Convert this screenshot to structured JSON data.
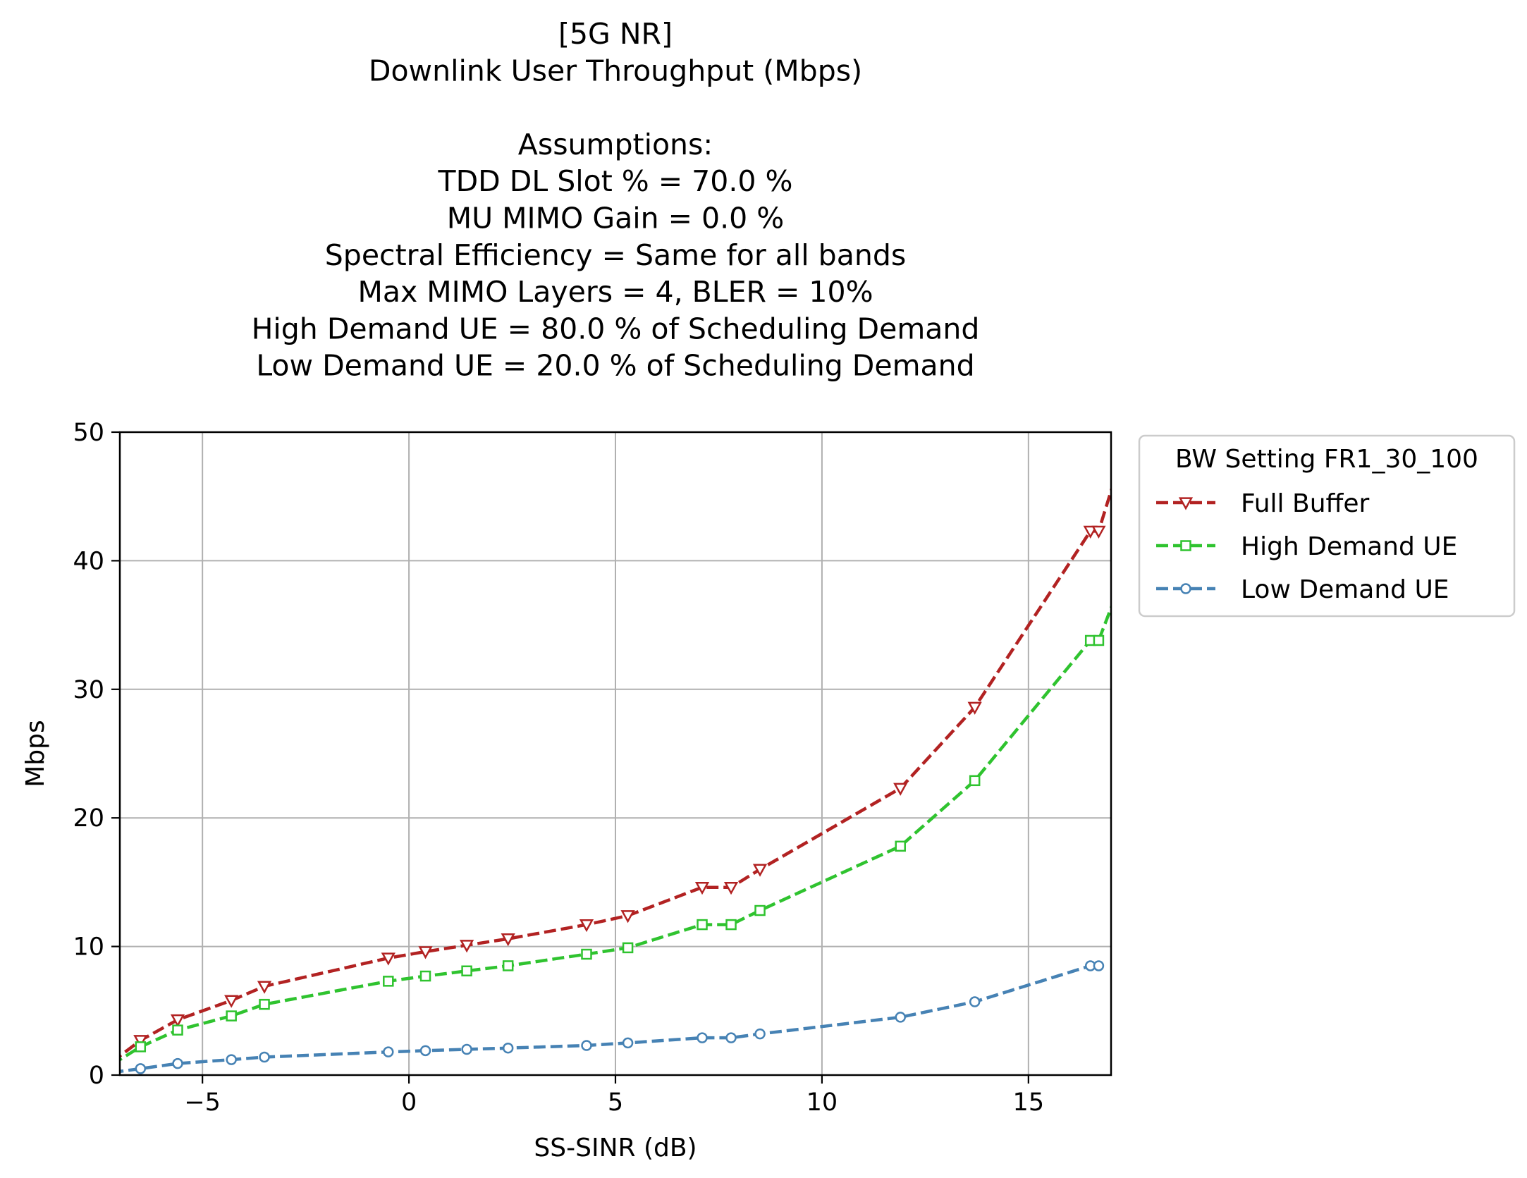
{
  "chart_data": {
    "type": "line",
    "title_lines": [
      "[5G NR]",
      "Downlink User Throughput (Mbps)",
      "",
      "Assumptions:",
      "TDD DL Slot % = 70.0 %",
      "MU MIMO Gain = 0.0 %",
      "Spectral Efficiency = Same for all bands",
      "Max MIMO Layers = 4, BLER = 10%",
      "High Demand UE = 80.0 % of Scheduling Demand",
      "Low Demand UE = 20.0 % of Scheduling Demand"
    ],
    "xlabel": "SS-SINR (dB)",
    "ylabel": "Mbps",
    "xlim": [
      -7,
      17
    ],
    "ylim": [
      0,
      50
    ],
    "xticks": [
      -5,
      0,
      5,
      10,
      15
    ],
    "xtick_labels": [
      "−5",
      "0",
      "5",
      "10",
      "15"
    ],
    "yticks": [
      0,
      10,
      20,
      30,
      40,
      50
    ],
    "ytick_labels": [
      "0",
      "10",
      "20",
      "30",
      "40",
      "50"
    ],
    "grid": true,
    "legend_title": "BW Setting FR1_30_100",
    "legend_position": "outside-top-right",
    "series": [
      {
        "name": "Full Buffer",
        "color": "#b22222",
        "marker": "triangle-down",
        "x": [
          -7.2,
          -6.5,
          -5.6,
          -4.3,
          -3.5,
          -0.5,
          0.4,
          1.4,
          2.4,
          4.3,
          5.3,
          7.1,
          7.8,
          8.5,
          11.9,
          13.7,
          16.5,
          16.7,
          17.2
        ],
        "y": [
          1.0,
          2.7,
          4.3,
          5.8,
          6.9,
          9.1,
          9.6,
          10.1,
          10.6,
          11.7,
          12.4,
          14.6,
          14.6,
          16.0,
          22.3,
          28.6,
          42.3,
          42.3,
          47.5
        ]
      },
      {
        "name": "High Demand UE",
        "color": "#2fc32f",
        "marker": "square",
        "x": [
          -7.2,
          -6.5,
          -5.6,
          -4.3,
          -3.5,
          -0.5,
          0.4,
          1.4,
          2.4,
          4.3,
          5.3,
          7.1,
          7.8,
          8.5,
          11.9,
          13.7,
          16.5,
          16.7,
          17.2
        ],
        "y": [
          0.8,
          2.2,
          3.5,
          4.6,
          5.5,
          7.3,
          7.7,
          8.1,
          8.5,
          9.4,
          9.9,
          11.7,
          11.7,
          12.8,
          17.8,
          22.9,
          33.8,
          33.8,
          38.0
        ]
      },
      {
        "name": "Low Demand UE",
        "color": "#4682b4",
        "marker": "circle",
        "x": [
          -7.2,
          -6.5,
          -5.6,
          -4.3,
          -3.5,
          -0.5,
          0.4,
          1.4,
          2.4,
          4.3,
          5.3,
          7.1,
          7.8,
          8.5,
          11.9,
          13.7,
          16.5,
          16.7
        ],
        "y": [
          0.2,
          0.5,
          0.9,
          1.2,
          1.4,
          1.8,
          1.9,
          2.0,
          2.1,
          2.3,
          2.5,
          2.9,
          2.9,
          3.2,
          4.5,
          5.7,
          8.5,
          8.5
        ]
      }
    ]
  }
}
